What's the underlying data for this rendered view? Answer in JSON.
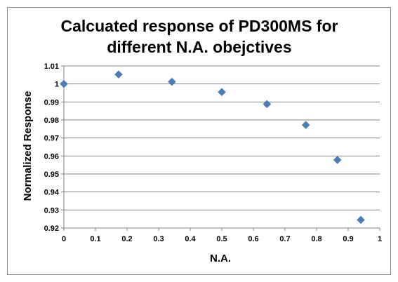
{
  "chart_data": {
    "type": "scatter",
    "title_lines": [
      "Calcuated response of PD300MS for",
      "different N.A. obejctives"
    ],
    "xlabel": "N.A.",
    "ylabel": "Normalized Response",
    "xlim": [
      0,
      1
    ],
    "ylim": [
      0.92,
      1.01
    ],
    "x_ticks": [
      "0",
      "0.1",
      "0.2",
      "0.3",
      "0.4",
      "0.5",
      "0.6",
      "0.7",
      "0.8",
      "0.9",
      "1"
    ],
    "y_ticks": [
      "0.92",
      "0.93",
      "0.94",
      "0.95",
      "0.96",
      "0.97",
      "0.98",
      "0.99",
      "1",
      "1.01"
    ],
    "grid": "horizontal",
    "legend": "none",
    "marker": "diamond",
    "marker_color": "#4a7ebb",
    "points": [
      {
        "x": 0.0,
        "y": 1.0
      },
      {
        "x": 0.173,
        "y": 1.0053
      },
      {
        "x": 0.342,
        "y": 1.0012
      },
      {
        "x": 0.5,
        "y": 0.9955
      },
      {
        "x": 0.643,
        "y": 0.9888
      },
      {
        "x": 0.766,
        "y": 0.9772
      },
      {
        "x": 0.866,
        "y": 0.9578
      },
      {
        "x": 0.94,
        "y": 0.9245
      }
    ]
  }
}
